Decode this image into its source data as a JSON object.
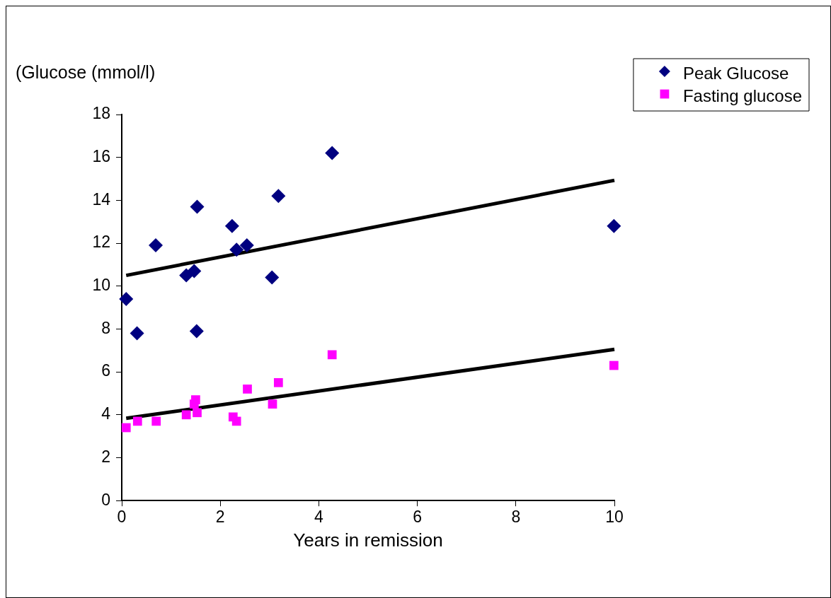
{
  "chart_data": {
    "type": "scatter",
    "xlabel": "Years in remission",
    "ylabel": "(Glucose (mmol/l)",
    "xlim": [
      0,
      10
    ],
    "xticks": [
      0,
      2,
      4,
      6,
      8,
      10
    ],
    "ylim": [
      0,
      18
    ],
    "yticks": [
      0,
      2,
      4,
      6,
      8,
      10,
      12,
      14,
      16,
      18
    ],
    "grid": false,
    "legend": "top right",
    "series": [
      {
        "name": "Peak Glucose",
        "type": "scatter",
        "marker": "diamond",
        "color": "#000080",
        "x": [
          0.09,
          0.31,
          0.69,
          1.31,
          1.47,
          1.52,
          1.53,
          2.24,
          2.33,
          2.54,
          3.05,
          3.18,
          4.27,
          9.99
        ],
        "values": [
          9.4,
          7.8,
          11.9,
          10.5,
          10.7,
          7.9,
          13.7,
          12.8,
          11.7,
          11.9,
          10.4,
          14.2,
          16.2,
          12.8
        ]
      },
      {
        "name": "Fasting glucose",
        "type": "scatter",
        "marker": "square",
        "color": "#ff00ff",
        "x": [
          0.09,
          0.32,
          0.7,
          1.31,
          1.47,
          1.5,
          1.53,
          2.26,
          2.33,
          2.55,
          3.06,
          3.18,
          4.27,
          9.99
        ],
        "values": [
          3.4,
          3.7,
          3.7,
          4.0,
          4.5,
          4.7,
          4.1,
          3.9,
          3.7,
          5.2,
          4.5,
          5.5,
          6.8,
          6.3
        ]
      },
      {
        "type": "line",
        "marker": "none",
        "line_style": "solid",
        "color": "#000000",
        "x": [
          0.09,
          10
        ],
        "values": [
          10.5,
          14.93
        ]
      },
      {
        "type": "line",
        "marker": "none",
        "line_style": "solid",
        "color": "#000000",
        "x": [
          0.09,
          10
        ],
        "values": [
          3.84,
          7.05
        ]
      }
    ]
  }
}
